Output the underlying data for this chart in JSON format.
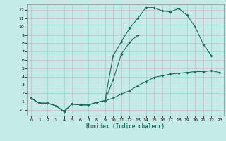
{
  "xlabel": "Humidex (Indice chaleur)",
  "bg_color": "#c5ebe7",
  "grid_color": "#c8bfcc",
  "line_color": "#1a6b5e",
  "xlim": [
    -0.5,
    23.5
  ],
  "ylim": [
    -0.7,
    12.7
  ],
  "xticks": [
    0,
    1,
    2,
    3,
    4,
    5,
    6,
    7,
    8,
    9,
    10,
    11,
    12,
    13,
    14,
    15,
    16,
    17,
    18,
    19,
    20,
    21,
    22,
    23
  ],
  "yticks": [
    0,
    1,
    2,
    3,
    4,
    5,
    6,
    7,
    8,
    9,
    10,
    11,
    12
  ],
  "ytick_labels": [
    "-0",
    "1",
    "2",
    "3",
    "4",
    "5",
    "6",
    "7",
    "8",
    "9",
    "10",
    "11",
    "12"
  ],
  "line1_x": [
    0,
    1,
    2,
    3,
    4,
    5,
    6,
    7,
    8,
    9,
    10,
    11,
    12,
    13,
    14,
    15,
    16,
    17,
    18,
    19,
    20,
    21,
    22,
    23
  ],
  "line1_y": [
    1.4,
    0.8,
    0.8,
    0.5,
    -0.2,
    0.7,
    0.6,
    0.6,
    0.9,
    1.1,
    1.4,
    1.9,
    2.3,
    2.9,
    3.4,
    3.9,
    4.1,
    4.3,
    4.4,
    4.5,
    4.6,
    4.6,
    4.7,
    4.5
  ],
  "line2_x": [
    0,
    1,
    2,
    3,
    4,
    5,
    6,
    7,
    8,
    9,
    10,
    11,
    12,
    13,
    14,
    15,
    16,
    17,
    18,
    19,
    20,
    21,
    22
  ],
  "line2_y": [
    1.4,
    0.8,
    0.8,
    0.5,
    -0.2,
    0.7,
    0.6,
    0.6,
    0.9,
    1.1,
    6.5,
    8.2,
    9.8,
    11.0,
    12.3,
    12.3,
    11.9,
    11.8,
    12.2,
    11.4,
    10.0,
    7.9,
    6.5
  ],
  "line3_x": [
    0,
    1,
    2,
    3,
    4,
    5,
    6,
    7,
    8,
    9,
    10,
    11,
    12,
    13
  ],
  "line3_y": [
    1.4,
    0.8,
    0.8,
    0.5,
    -0.2,
    0.7,
    0.6,
    0.6,
    0.9,
    1.1,
    3.6,
    6.7,
    8.1,
    9.0
  ]
}
